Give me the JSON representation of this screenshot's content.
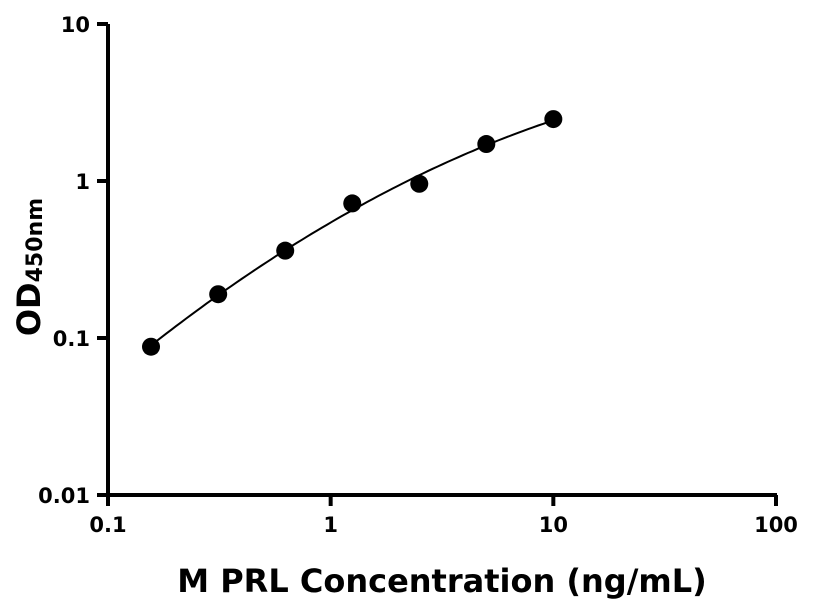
{
  "chart_data": {
    "type": "scatter",
    "title": "",
    "xlabel": "M PRL Concentration (ng/mL)",
    "ylabel_main": "OD",
    "ylabel_sub": "450nm",
    "x_scale": "log",
    "y_scale": "log",
    "xlim": [
      0.1,
      100
    ],
    "ylim": [
      0.01,
      10
    ],
    "x_ticks": [
      0.1,
      1,
      10,
      100
    ],
    "x_tick_labels": [
      "0.1",
      "1",
      "10",
      "100"
    ],
    "y_ticks": [
      0.01,
      0.1,
      1,
      10
    ],
    "y_tick_labels": [
      "0.01",
      "0.1",
      "1",
      "10"
    ],
    "grid": false,
    "legend": "none",
    "fit_curve": true,
    "point_color": "#000000",
    "series": [
      {
        "x": [
          0.156,
          0.3125,
          0.625,
          1.25,
          2.5,
          5,
          10
        ],
        "y": [
          0.088,
          0.19,
          0.36,
          0.72,
          0.96,
          1.72,
          2.48
        ]
      }
    ]
  }
}
